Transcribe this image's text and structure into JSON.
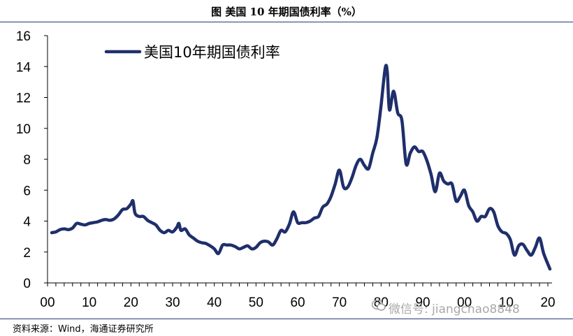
{
  "title": "图  美国 10 年期国债利率（%）",
  "source": "资料来源：Wind，海通证券研究所",
  "watermark": "微信号: jiangchao8848",
  "colors": {
    "series": "#1f2f6b",
    "rule": "#1f3c78"
  },
  "chart_data": {
    "type": "line",
    "legend": "top-left",
    "grid": false,
    "ylim": [
      0,
      16
    ],
    "yticks": [
      "0",
      "2",
      "4",
      "6",
      "8",
      "10",
      "12",
      "14",
      "16"
    ],
    "xlim": [
      1900,
      2021
    ],
    "xticks": [
      {
        "x": 1900,
        "label": "00"
      },
      {
        "x": 1910,
        "label": "10"
      },
      {
        "x": 1920,
        "label": "20"
      },
      {
        "x": 1930,
        "label": "30"
      },
      {
        "x": 1940,
        "label": "40"
      },
      {
        "x": 1950,
        "label": "50"
      },
      {
        "x": 1960,
        "label": "60"
      },
      {
        "x": 1970,
        "label": "70"
      },
      {
        "x": 1980,
        "label": "80"
      },
      {
        "x": 1990,
        "label": "90"
      },
      {
        "x": 2000,
        "label": "00"
      },
      {
        "x": 2010,
        "label": "10"
      },
      {
        "x": 2020,
        "label": "20"
      }
    ],
    "series": [
      {
        "name": "美国10年期国债利率",
        "x": [
          1901,
          1902,
          1903,
          1904,
          1905,
          1906,
          1907,
          1908,
          1909,
          1910,
          1911,
          1912,
          1913,
          1914,
          1915,
          1916,
          1917,
          1918,
          1919,
          1920,
          1920.5,
          1921,
          1922,
          1923,
          1924,
          1925,
          1926,
          1927,
          1928,
          1929,
          1930,
          1931,
          1931.5,
          1932,
          1933,
          1934,
          1935,
          1936,
          1937,
          1938,
          1939,
          1940,
          1941,
          1942,
          1943,
          1944,
          1945,
          1946,
          1947,
          1948,
          1949,
          1950,
          1951,
          1952,
          1953,
          1954,
          1955,
          1956,
          1957,
          1958,
          1959,
          1960,
          1961,
          1962,
          1963,
          1964,
          1965,
          1966,
          1967,
          1968,
          1969,
          1970,
          1971,
          1972,
          1973,
          1974,
          1975,
          1976,
          1977,
          1978,
          1979,
          1980,
          1981,
          1981.5,
          1982,
          1983,
          1984,
          1985,
          1986,
          1987,
          1988,
          1989,
          1990,
          1991,
          1992,
          1993,
          1994,
          1995,
          1996,
          1997,
          1998,
          1999,
          2000,
          2001,
          2002,
          2003,
          2004,
          2005,
          2006,
          2007,
          2008,
          2009,
          2010,
          2011,
          2012,
          2013,
          2014,
          2015,
          2016,
          2017,
          2018,
          2019,
          2020.5
        ],
        "values": [
          3.25,
          3.3,
          3.45,
          3.5,
          3.45,
          3.55,
          3.85,
          3.8,
          3.75,
          3.85,
          3.9,
          3.95,
          4.05,
          4.1,
          4.05,
          4.15,
          4.4,
          4.75,
          4.8,
          5.1,
          5.3,
          4.5,
          4.3,
          4.3,
          4.05,
          3.9,
          3.75,
          3.4,
          3.25,
          3.4,
          3.3,
          3.6,
          3.85,
          3.4,
          3.5,
          3.1,
          2.9,
          2.7,
          2.6,
          2.55,
          2.4,
          2.2,
          1.9,
          2.45,
          2.45,
          2.45,
          2.35,
          2.2,
          2.3,
          2.4,
          2.2,
          2.3,
          2.6,
          2.7,
          2.65,
          2.45,
          2.85,
          3.4,
          3.3,
          3.8,
          4.6,
          3.9,
          3.9,
          3.9,
          4.0,
          4.2,
          4.3,
          4.9,
          5.1,
          5.6,
          6.4,
          7.3,
          6.2,
          6.2,
          6.8,
          7.6,
          8.0,
          7.6,
          7.4,
          8.4,
          9.4,
          11.5,
          13.9,
          13.6,
          11.2,
          12.4,
          11.0,
          10.5,
          7.7,
          8.4,
          8.8,
          8.5,
          8.5,
          7.9,
          7.0,
          5.9,
          7.1,
          6.6,
          6.4,
          6.4,
          5.3,
          5.6,
          6.0,
          5.0,
          4.6,
          4.0,
          4.3,
          4.3,
          4.8,
          4.6,
          3.7,
          3.3,
          3.2,
          2.8,
          1.8,
          2.4,
          2.5,
          2.1,
          1.8,
          2.3,
          2.9,
          1.9,
          0.9
        ]
      }
    ]
  }
}
